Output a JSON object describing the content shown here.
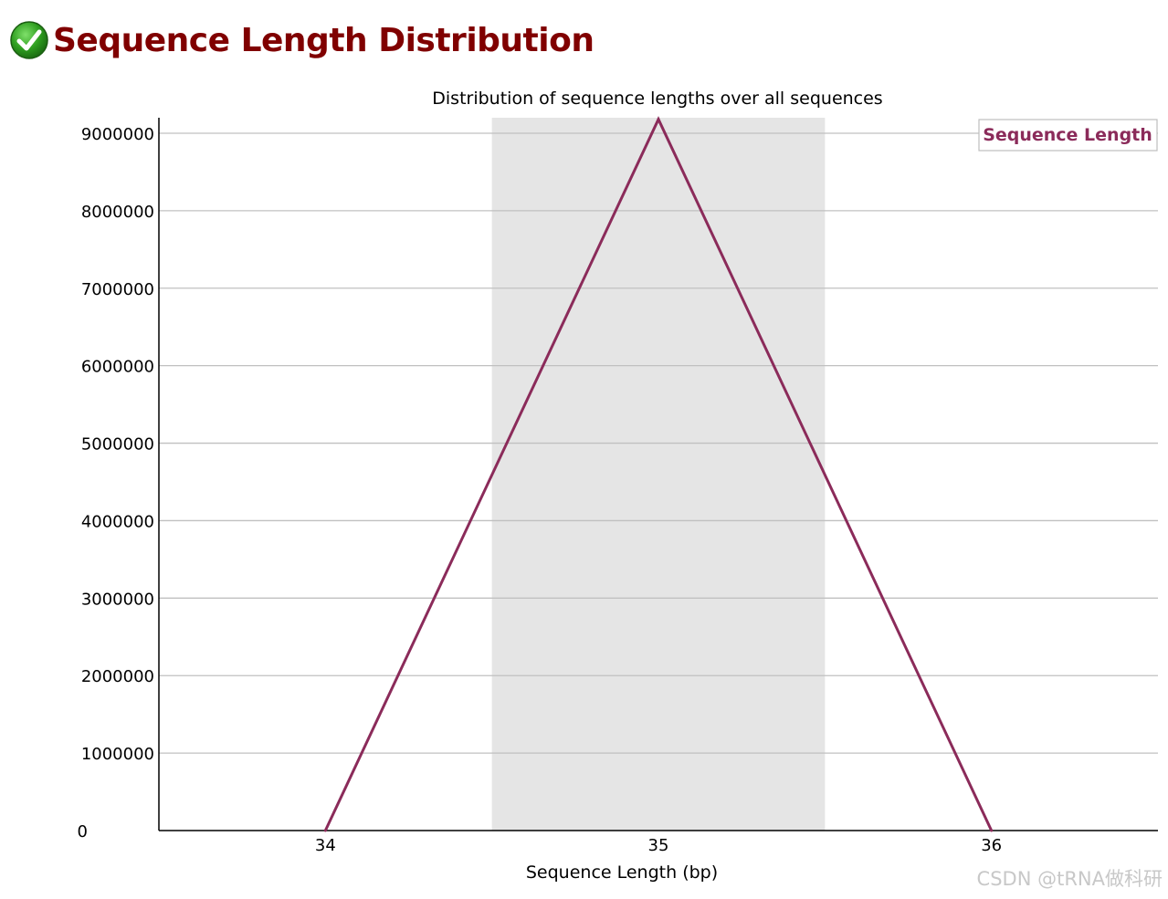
{
  "header": {
    "title": "Sequence Length Distribution",
    "status_icon": "check-circle-icon",
    "status_color": "#2e9e1f"
  },
  "watermark": "CSDN @tRNA做科研",
  "chart_data": {
    "type": "line",
    "title": "Distribution of sequence lengths over all sequences",
    "xlabel": "Sequence Length (bp)",
    "ylabel": "",
    "x": [
      34,
      35,
      36
    ],
    "x_tick_labels": [
      "34",
      "35",
      "36"
    ],
    "xlim": [
      33.5,
      36.5
    ],
    "ylim": [
      0,
      9200000
    ],
    "y_ticks": [
      0,
      1000000,
      2000000,
      3000000,
      4000000,
      5000000,
      6000000,
      7000000,
      8000000,
      9000000
    ],
    "y_tick_labels": [
      "0",
      "1000000",
      "2000000",
      "3000000",
      "4000000",
      "5000000",
      "6000000",
      "7000000",
      "8000000",
      "9000000"
    ],
    "highlight_band": {
      "x_from": 34.5,
      "x_to": 35.5,
      "color": "#e5e5e5"
    },
    "grid": true,
    "legend_position": "top-right",
    "series": [
      {
        "name": "Sequence Length",
        "color": "#8b2b5a",
        "values": [
          0,
          9180000,
          0
        ]
      }
    ]
  }
}
